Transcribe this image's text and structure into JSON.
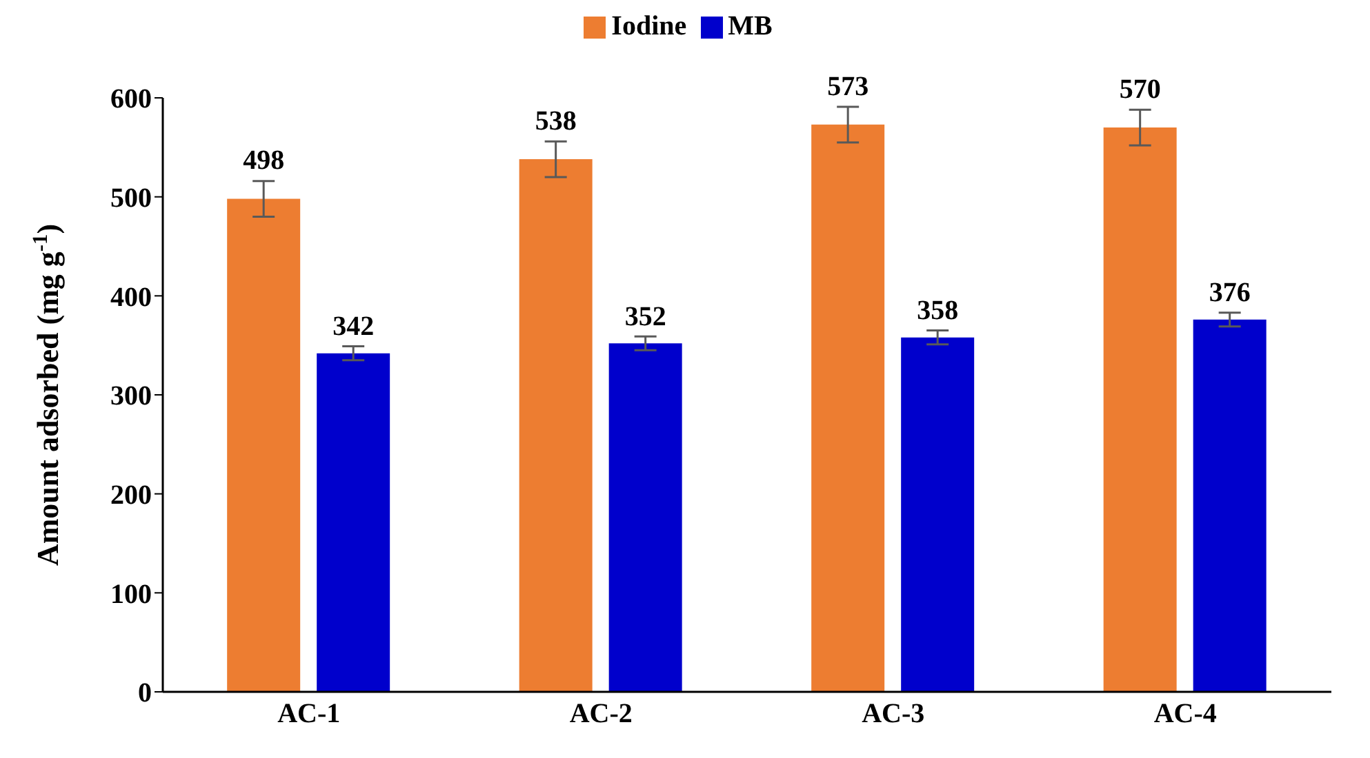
{
  "chart_data": {
    "type": "bar",
    "ylabel": "Amount adsorbed (mg g$^{-1}$)",
    "categories": [
      "AC-1",
      "AC-2",
      "AC-3",
      "AC-4"
    ],
    "series": [
      {
        "name": "Iodine",
        "color": "#ed7d31",
        "values": [
          498,
          538,
          573,
          570
        ],
        "errors": [
          18,
          18,
          18,
          18
        ]
      },
      {
        "name": "MB",
        "color": "#0000cc",
        "values": [
          342,
          352,
          358,
          376
        ],
        "errors": [
          7,
          7,
          7,
          7
        ]
      }
    ],
    "ylim": [
      0,
      600
    ],
    "yticks": [
      0,
      100,
      200,
      300,
      400,
      500,
      600
    ],
    "grid": false,
    "legend": "top",
    "data_labels": true
  }
}
